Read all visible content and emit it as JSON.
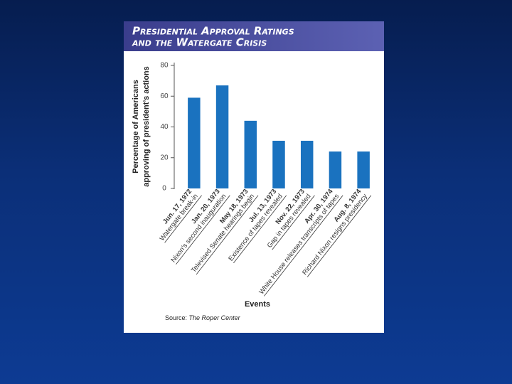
{
  "chart_data": {
    "type": "bar",
    "title": [
      "Presidential Approval Ratings",
      "and the Watergate Crisis"
    ],
    "y_label": [
      "Percentage of Americans",
      "approving of president’s actions"
    ],
    "x_label": "Events",
    "source_prefix": "Source:",
    "source": "The Roper Center",
    "categories": [
      "Jun. 17, 1972",
      "Jan. 20, 1973",
      "May 18, 1973",
      "Jul. 13, 1973",
      "Nov. 22, 1973",
      "Apr. 30, 1974",
      "Aug. 8, 1974"
    ],
    "category_events": [
      "Watergate break-in",
      "Nixon’s second inauguration",
      "Televised Senate hearings begin",
      "Existence of tapes revealed",
      "Gap in tapes revealed",
      "White House releases transcripts of tapes",
      "Richard Nixon resigns presidency"
    ],
    "values": [
      59,
      67,
      44,
      31,
      31,
      24,
      24
    ],
    "color": "#1a72bf",
    "ylim": [
      0,
      80
    ],
    "yticks": [
      0,
      20,
      40,
      60,
      80
    ],
    "grid": false
  }
}
